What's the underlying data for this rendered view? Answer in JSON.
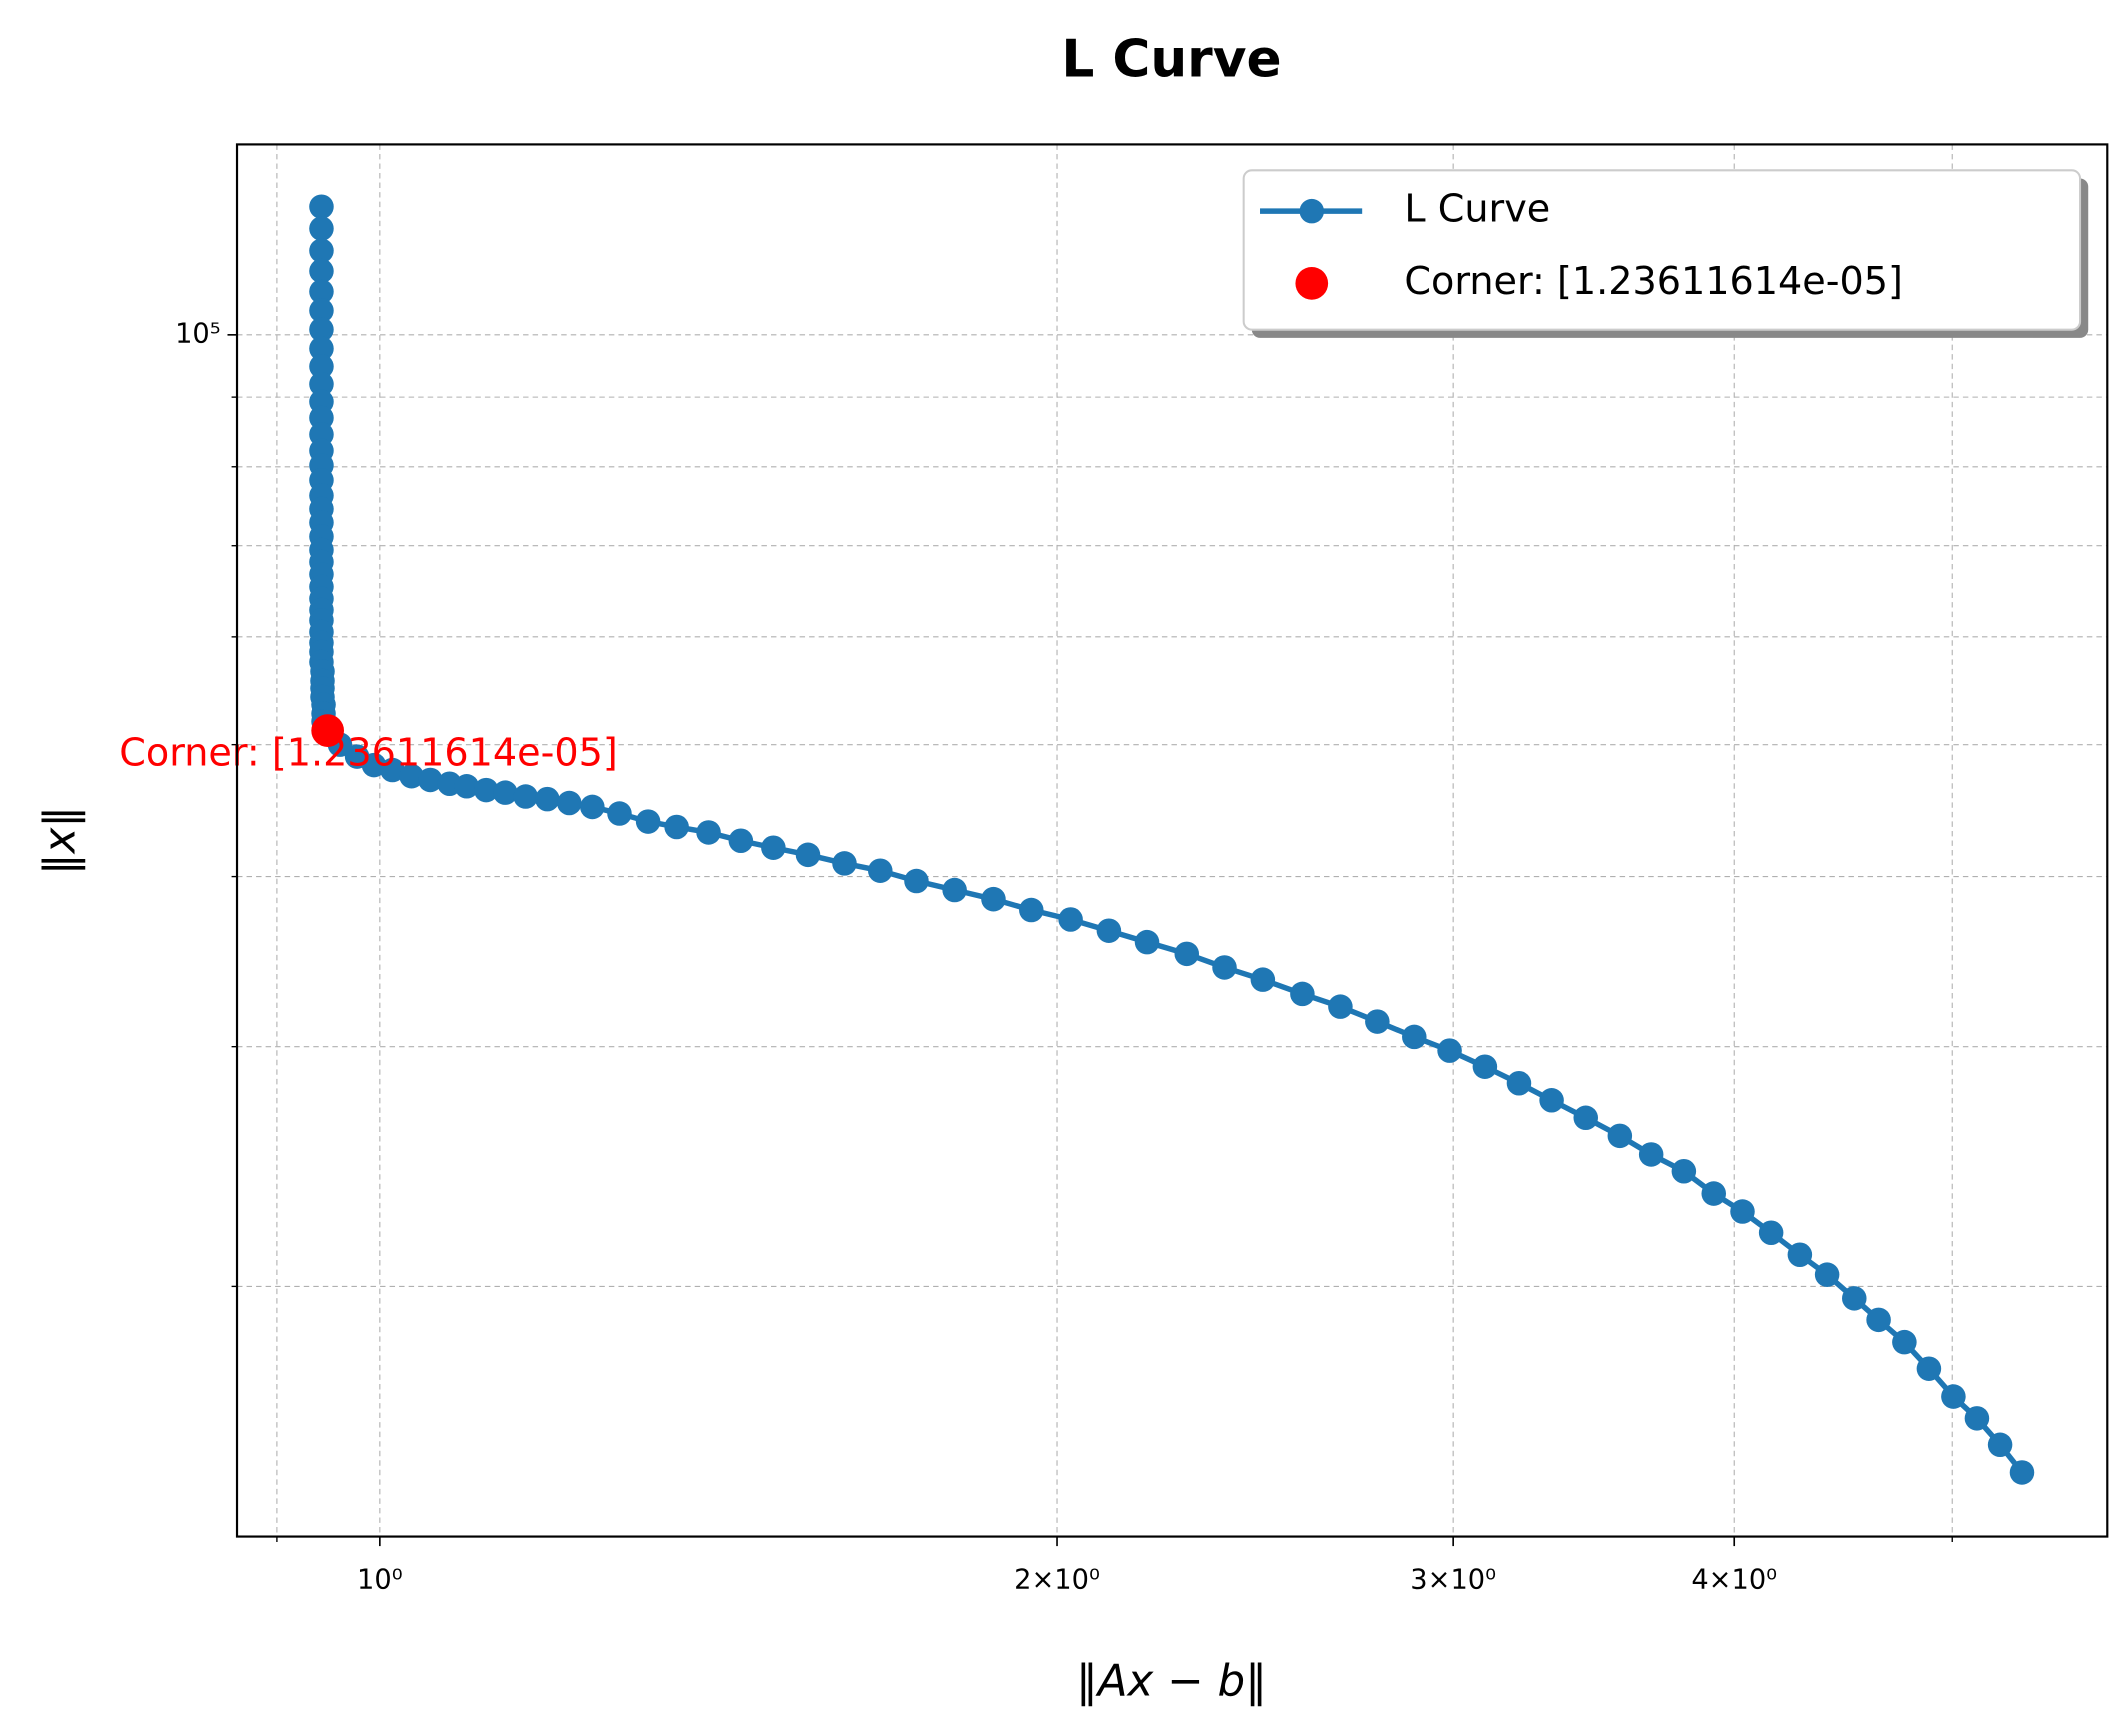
{
  "chart_data": {
    "type": "line",
    "title": "L Curve",
    "xlabel": "‖Ax − b‖",
    "ylabel": "‖x‖",
    "xscale": "log",
    "yscale": "log",
    "grid": true,
    "legend": "upper right",
    "annotation": "Corner: [1.23611614e-05]",
    "annotation_color": "#ff0000",
    "xlim": [
      0.864,
      5.86
    ],
    "ylim": [
      13100,
      138000
    ],
    "xticks": [
      {
        "value": 1,
        "label": "10⁰"
      },
      {
        "value": 2,
        "label": "2×10⁰"
      },
      {
        "value": 3,
        "label": "3×10⁰"
      },
      {
        "value": 4,
        "label": "4×10⁰"
      }
    ],
    "xminorticks": [
      0.9,
      5
    ],
    "yticks": [
      {
        "value": 100000,
        "label": "10⁵"
      }
    ],
    "yminorticks": [
      20000,
      30000,
      40000,
      50000,
      60000,
      70000,
      80000,
      90000
    ],
    "series": [
      {
        "name": "L Curve",
        "color": "#1f77b4",
        "x": [
          0.942,
          0.942,
          0.942,
          0.942,
          0.942,
          0.942,
          0.942,
          0.942,
          0.942,
          0.942,
          0.942,
          0.942,
          0.942,
          0.942,
          0.942,
          0.942,
          0.942,
          0.942,
          0.942,
          0.942,
          0.942,
          0.942,
          0.942,
          0.942,
          0.942,
          0.942,
          0.942,
          0.942,
          0.942,
          0.942,
          0.942,
          0.943,
          0.943,
          0.943,
          0.943,
          0.944,
          0.944,
          0.944,
          0.948,
          0.96,
          0.977,
          0.994,
          1.013,
          1.033,
          1.053,
          1.074,
          1.093,
          1.115,
          1.137,
          1.161,
          1.187,
          1.214,
          1.243,
          1.278,
          1.316,
          1.355,
          1.4,
          1.447,
          1.496,
          1.55,
          1.609,
          1.669,
          1.732,
          1.801,
          1.874,
          1.948,
          2.028,
          2.109,
          2.193,
          2.284,
          2.374,
          2.469,
          2.571,
          2.673,
          2.776,
          2.883,
          2.989,
          3.099,
          3.209,
          3.318,
          3.436,
          3.558,
          3.674,
          3.799,
          3.917,
          4.034,
          4.154,
          4.278,
          4.399,
          4.523,
          4.637,
          4.761,
          4.882,
          5.006,
          5.128,
          5.251,
          5.37
        ],
        "values": [
          124200,
          119700,
          115300,
          111400,
          107600,
          104200,
          100900,
          97700,
          94800,
          92000,
          89300,
          86900,
          84500,
          82200,
          80200,
          78200,
          76200,
          74500,
          72800,
          71100,
          69500,
          68100,
          66700,
          65300,
          64000,
          62800,
          61700,
          60500,
          59400,
          58500,
          57500,
          56600,
          55700,
          55000,
          54200,
          53500,
          52700,
          52000,
          51200,
          50000,
          49000,
          48300,
          47900,
          47400,
          47100,
          46800,
          46600,
          46300,
          46100,
          45800,
          45600,
          45300,
          45000,
          44500,
          43900,
          43500,
          43100,
          42500,
          42000,
          41500,
          40900,
          40400,
          39700,
          39100,
          38500,
          37800,
          37200,
          36500,
          35800,
          35100,
          34300,
          33600,
          32800,
          32100,
          31300,
          30500,
          29800,
          29000,
          28200,
          27400,
          26600,
          25800,
          25000,
          24300,
          23400,
          22700,
          21900,
          21100,
          20400,
          19600,
          18900,
          18200,
          17400,
          16600,
          16000,
          15300,
          14600
        ]
      },
      {
        "name": "Corner: [1.23611614e-05]",
        "color": "#ff0000",
        "x": [
          0.948
        ],
        "values": [
          51200
        ]
      }
    ]
  }
}
